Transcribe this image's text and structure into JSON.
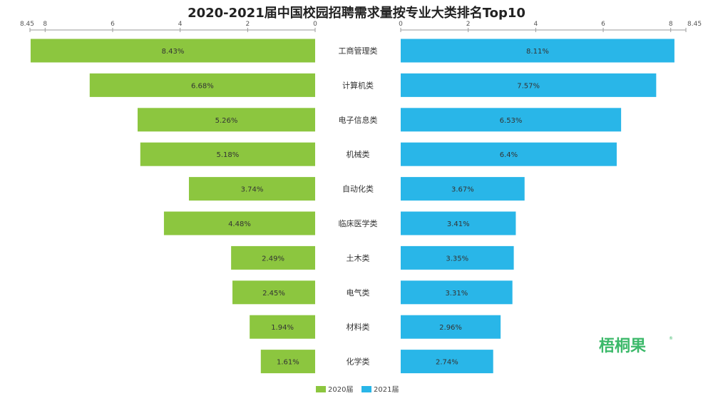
{
  "chart_data": {
    "type": "bar",
    "layout": "butterfly",
    "title": "2020-2021届中国校园招聘需求量按专业大类排名Top10",
    "categories": [
      "工商管理类",
      "计算机类",
      "电子信息类",
      "机械类",
      "自动化类",
      "临床医学类",
      "土木类",
      "电气类",
      "材料类",
      "化学类"
    ],
    "series": [
      {
        "name": "2020届",
        "color": "#8cc63f",
        "values": [
          8.43,
          6.68,
          5.26,
          5.18,
          3.74,
          4.48,
          2.49,
          2.45,
          1.94,
          1.61
        ],
        "labels": [
          "8.43%",
          "6.68%",
          "5.26%",
          "5.18%",
          "3.74%",
          "4.48%",
          "2.49%",
          "2.45%",
          "1.94%",
          "1.61%"
        ]
      },
      {
        "name": "2021届",
        "color": "#29b6e8",
        "values": [
          8.11,
          7.57,
          6.53,
          6.4,
          3.67,
          3.41,
          3.35,
          3.31,
          2.96,
          2.74
        ],
        "labels": [
          "8.11%",
          "7.57%",
          "6.53%",
          "6.4%",
          "3.67%",
          "3.41%",
          "3.35%",
          "3.31%",
          "2.96%",
          "2.74%"
        ]
      }
    ],
    "xlim": [
      0,
      8.45
    ],
    "left_ticks": [
      "8.45",
      "8",
      "6",
      "4",
      "2",
      "0"
    ],
    "right_ticks": [
      "0",
      "2",
      "4",
      "6",
      "8",
      "8.45"
    ],
    "legend_position": "bottom-center",
    "grid": false
  },
  "watermark": {
    "text": "梧桐果",
    "color": "#3cb96a"
  }
}
